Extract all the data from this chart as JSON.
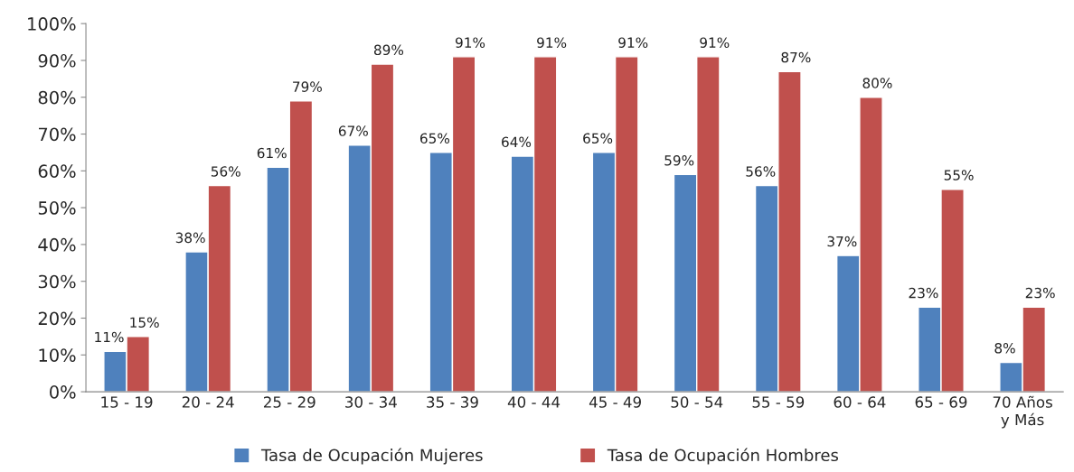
{
  "chart_data": {
    "type": "bar",
    "categories": [
      "15 - 19",
      "20 - 24",
      "25 - 29",
      "30 - 34",
      "35 - 39",
      "40 - 44",
      "45 - 49",
      "50 - 54",
      "55 - 59",
      "60 - 64",
      "65 - 69",
      "70 Años\ny Más"
    ],
    "series": [
      {
        "name": "Tasa de Ocupación Mujeres",
        "color": "#4f81bd",
        "values": [
          11,
          38,
          61,
          67,
          65,
          64,
          65,
          59,
          56,
          37,
          23,
          8
        ],
        "value_labels": [
          "11%",
          "38%",
          "61%",
          "67%",
          "65%",
          "64%",
          "65%",
          "59%",
          "56%",
          "37%",
          "23%",
          "8%"
        ]
      },
      {
        "name": "Tasa de Ocupación Hombres",
        "color": "#c0504d",
        "values": [
          15,
          56,
          79,
          89,
          91,
          91,
          91,
          91,
          87,
          80,
          55,
          23
        ],
        "value_labels": [
          "15%",
          "56%",
          "79%",
          "89%",
          "91%",
          "91%",
          "91%",
          "91%",
          "87%",
          "80%",
          "55%",
          "23%"
        ]
      }
    ],
    "ylim": [
      0,
      100
    ],
    "yticks": [
      {
        "value": 0,
        "label": "0%"
      },
      {
        "value": 10,
        "label": "10%"
      },
      {
        "value": 20,
        "label": "20%"
      },
      {
        "value": 30,
        "label": "30%"
      },
      {
        "value": 40,
        "label": "40%"
      },
      {
        "value": 50,
        "label": "50%"
      },
      {
        "value": 60,
        "label": "60%"
      },
      {
        "value": 70,
        "label": "70%"
      },
      {
        "value": 80,
        "label": "80%"
      },
      {
        "value": 90,
        "label": "90%"
      },
      {
        "value": 100,
        "label": "100%"
      }
    ],
    "grid": false,
    "legend": "bottom"
  }
}
